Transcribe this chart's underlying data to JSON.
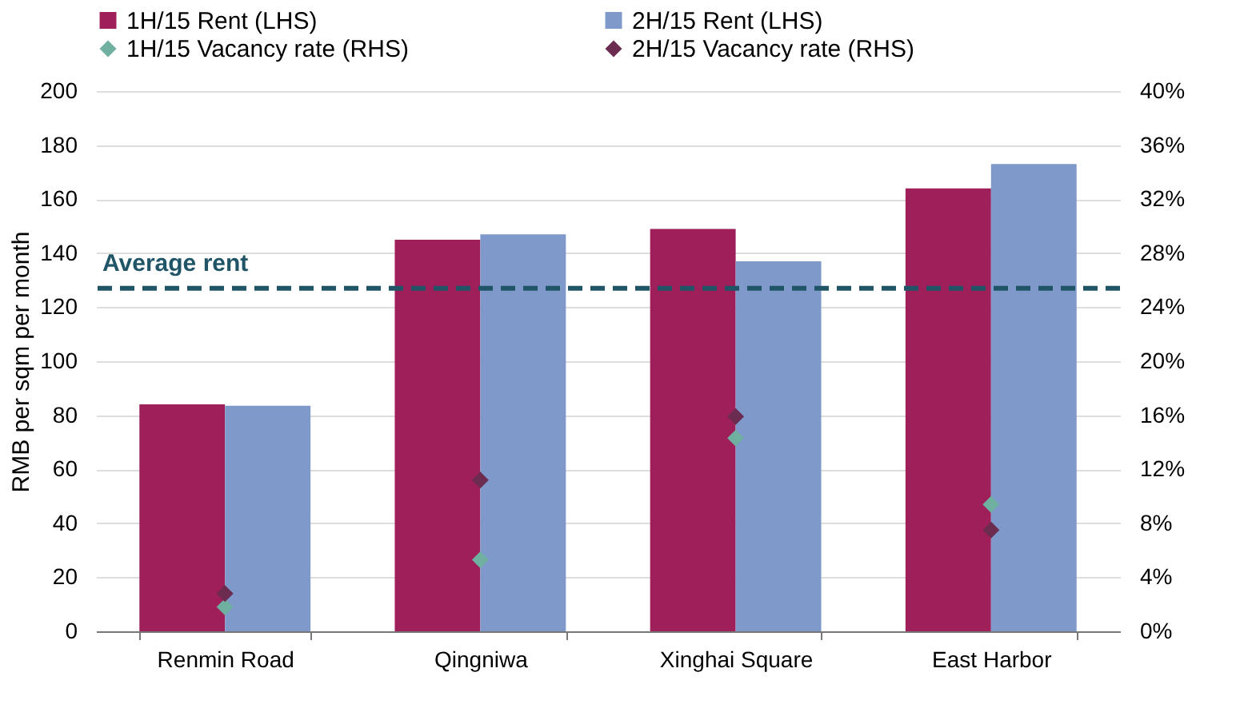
{
  "chart_data": {
    "type": "bar",
    "categories": [
      "Renmin Road",
      "Qingniwa",
      "Xinghai Square",
      "East Harbor"
    ],
    "ylabel": "RMB per sqm per month",
    "ylim": [
      0,
      200
    ],
    "yticks": [
      0,
      20,
      40,
      60,
      80,
      100,
      120,
      140,
      160,
      180,
      200
    ],
    "y2lim": [
      0,
      40
    ],
    "y2ticks": [
      {
        "value": 0,
        "label": "0%"
      },
      {
        "value": 4,
        "label": "4%"
      },
      {
        "value": 8,
        "label": "8%"
      },
      {
        "value": 12,
        "label": "12%"
      },
      {
        "value": 16,
        "label": "16%"
      },
      {
        "value": 20,
        "label": "20%"
      },
      {
        "value": 24,
        "label": "24%"
      },
      {
        "value": 28,
        "label": "28%"
      },
      {
        "value": 32,
        "label": "32%"
      },
      {
        "value": 36,
        "label": "36%"
      },
      {
        "value": 40,
        "label": "40%"
      }
    ],
    "series": [
      {
        "name": "1H/15  Rent (LHS)",
        "color": "#9e1f5a",
        "values": [
          84,
          145,
          149,
          164
        ]
      },
      {
        "name": "2H/15 Rent (LHS)",
        "color": "#7f99cb",
        "values": [
          83.5,
          147,
          137,
          173
        ]
      },
      {
        "name": "1H/15 Vacancy rate (RHS)",
        "color": "#6fb0a0",
        "type": "scatter",
        "axis": "y2",
        "marker": "diamond",
        "values": [
          1.8,
          5.3,
          14.3,
          9.4
        ]
      },
      {
        "name": "2H/15 Vacancy rate (RHS)",
        "color": "#6b2c50",
        "type": "scatter",
        "axis": "y2",
        "marker": "diamond",
        "values": [
          2.8,
          11.2,
          15.9,
          7.5
        ]
      }
    ],
    "ref_lines": [
      {
        "axis": "y",
        "value": 127,
        "label": "Average rent",
        "color": "#1f5566",
        "line_style": "dashed"
      }
    ],
    "grid": "y",
    "legend": "top"
  }
}
